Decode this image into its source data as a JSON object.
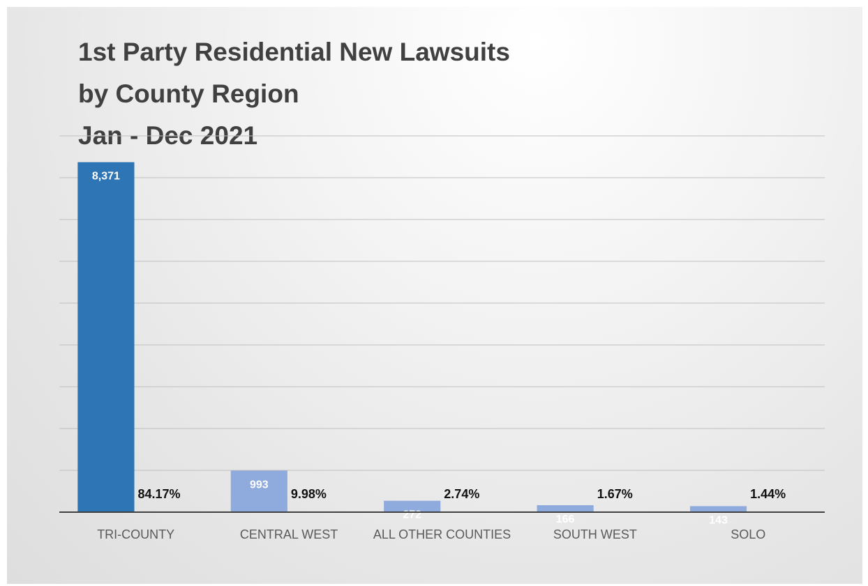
{
  "chart_data": {
    "type": "bar",
    "title_lines": [
      "1st Party Residential New Lawsuits",
      "by County Region",
      "Jan - Dec 2021"
    ],
    "categories": [
      "TRI-COUNTY",
      "CENTRAL WEST",
      "ALL OTHER COUNTIES",
      "SOUTH WEST",
      "SOLO"
    ],
    "values": [
      8371,
      993,
      272,
      166,
      143
    ],
    "value_labels": [
      "8,371",
      "993",
      "272",
      "166",
      "143"
    ],
    "percent_labels": [
      "84.17%",
      "9.98%",
      "2.74%",
      "1.67%",
      "1.44%"
    ],
    "ylim": [
      0,
      9000
    ],
    "grid": true,
    "legend": "none",
    "colors": {
      "primary_bar": "#2e75b6",
      "secondary_bar": "#8faadc",
      "gridline": "#bfbfbf",
      "axis": "#404040"
    }
  }
}
